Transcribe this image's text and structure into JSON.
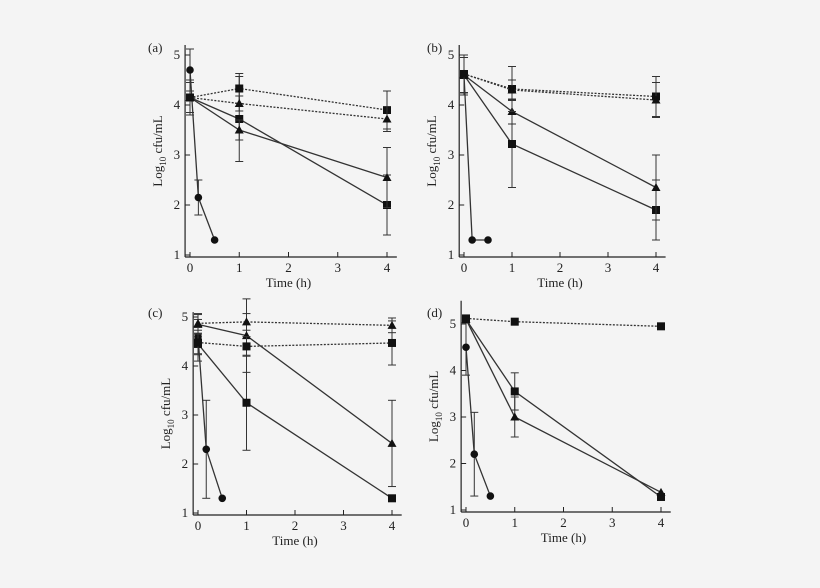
{
  "chart_data": [
    {
      "type": "line",
      "panel_label": "(a)",
      "xlabel": "Time (h)",
      "ylabel": {
        "base": "Log",
        "sub": "10",
        "rest": " cfu/mL"
      },
      "xlim": [
        -0.1,
        4.2
      ],
      "ylim": [
        1,
        5.2
      ],
      "xticks": [
        0,
        1,
        2,
        3,
        4
      ],
      "yticks": [
        1,
        2,
        3,
        4,
        5
      ],
      "grid": false,
      "series": [
        {
          "marker": "circle",
          "line": "solid",
          "x": [
            0,
            0.17,
            0.5
          ],
          "y": [
            4.7,
            2.15,
            1.3
          ],
          "err": [
            0.42,
            0.35,
            null
          ]
        },
        {
          "marker": "square",
          "line": "solid",
          "x": [
            0,
            1,
            4
          ],
          "y": [
            4.15,
            3.72,
            2.0
          ],
          "err": [
            0.35,
            0.85,
            0.6
          ]
        },
        {
          "marker": "triangle",
          "line": "solid",
          "x": [
            0,
            1,
            4
          ],
          "y": [
            4.15,
            3.5,
            2.55
          ],
          "err": [
            0.3,
            0.2,
            0.6
          ]
        },
        {
          "marker": "square",
          "line": "dotted",
          "x": [
            0,
            1,
            4
          ],
          "y": [
            4.15,
            4.33,
            3.9
          ],
          "err": [
            0.3,
            0.3,
            0.38
          ]
        },
        {
          "marker": "triangle",
          "line": "dotted",
          "x": [
            0,
            1,
            4
          ],
          "y": [
            4.15,
            4.03,
            3.72
          ],
          "err": [
            0.3,
            0.15,
            0.25
          ]
        }
      ]
    },
    {
      "type": "line",
      "panel_label": "(b)",
      "xlabel": "Time (h)",
      "ylabel": {
        "base": "Log",
        "sub": "10",
        "rest": " cfu/mL"
      },
      "xlim": [
        -0.1,
        4.2
      ],
      "ylim": [
        1,
        5.2
      ],
      "xticks": [
        0,
        1,
        2,
        3,
        4
      ],
      "yticks": [
        1,
        2,
        3,
        4,
        5
      ],
      "grid": false,
      "series": [
        {
          "marker": "circle",
          "line": "solid",
          "x": [
            0,
            0.17,
            0.5
          ],
          "y": [
            4.6,
            1.3,
            1.3
          ],
          "err": [
            0.4,
            null,
            null
          ]
        },
        {
          "marker": "square",
          "line": "solid",
          "x": [
            0,
            1,
            4
          ],
          "y": [
            4.6,
            3.22,
            1.9
          ],
          "err": [
            0.4,
            0.87,
            0.6
          ]
        },
        {
          "marker": "triangle",
          "line": "solid",
          "x": [
            0,
            1,
            4
          ],
          "y": [
            4.6,
            3.87,
            2.35
          ],
          "err": [
            0.35,
            0.25,
            0.65
          ]
        },
        {
          "marker": "square",
          "line": "dotted",
          "x": [
            0,
            1,
            4
          ],
          "y": [
            4.62,
            4.32,
            4.17
          ],
          "err": [
            0.38,
            0.45,
            0.4
          ]
        },
        {
          "marker": "triangle",
          "line": "dotted",
          "x": [
            0,
            1,
            4
          ],
          "y": [
            4.62,
            4.3,
            4.1
          ],
          "err": [
            0.38,
            0.2,
            0.35
          ]
        }
      ]
    },
    {
      "type": "line",
      "panel_label": "(c)",
      "xlabel": "Time (h)",
      "ylabel": {
        "base": "Log",
        "sub": "10",
        "rest": " cfu/mL"
      },
      "xlim": [
        -0.1,
        4.2
      ],
      "ylim": [
        1,
        5.1
      ],
      "xticks": [
        0,
        1,
        2,
        3,
        4
      ],
      "yticks": [
        1,
        2,
        3,
        4,
        5
      ],
      "grid": false,
      "series": [
        {
          "marker": "circle",
          "line": "solid",
          "x": [
            0,
            0.17,
            0.5
          ],
          "y": [
            4.6,
            2.3,
            1.3
          ],
          "err": [
            0.35,
            1.0,
            null
          ]
        },
        {
          "marker": "square",
          "line": "solid",
          "x": [
            0,
            1,
            4
          ],
          "y": [
            4.45,
            3.25,
            1.3
          ],
          "err": [
            0.35,
            0.97,
            null
          ]
        },
        {
          "marker": "triangle",
          "line": "solid",
          "x": [
            0,
            1,
            4
          ],
          "y": [
            4.85,
            4.62,
            2.42
          ],
          "err": [
            0.2,
            0.75,
            0.88
          ]
        },
        {
          "marker": "square",
          "line": "dotted",
          "x": [
            0,
            1,
            4
          ],
          "y": [
            4.48,
            4.4,
            4.47
          ],
          "err": [
            0.25,
            0.2,
            0.45
          ]
        },
        {
          "marker": "triangle",
          "line": "dotted",
          "x": [
            0,
            1,
            4
          ],
          "y": [
            4.87,
            4.9,
            4.83
          ],
          "err": [
            0.2,
            0.17,
            0.15
          ]
        }
      ]
    },
    {
      "type": "line",
      "panel_label": "(d)",
      "xlabel": "Time (h)",
      "ylabel": {
        "base": "Log",
        "sub": "10",
        "rest": " cfu/mL"
      },
      "xlim": [
        -0.1,
        4.2
      ],
      "ylim": [
        1,
        5.5
      ],
      "xticks": [
        0,
        1,
        2,
        3,
        4
      ],
      "yticks": [
        1,
        2,
        3,
        4,
        5
      ],
      "grid": false,
      "series": [
        {
          "marker": "circle",
          "line": "solid",
          "x": [
            0,
            0.17,
            0.5
          ],
          "y": [
            4.5,
            2.2,
            1.3
          ],
          "err": [
            0.6,
            0.9,
            null
          ]
        },
        {
          "marker": "square",
          "line": "solid",
          "x": [
            0,
            1,
            4
          ],
          "y": [
            5.1,
            3.55,
            1.28
          ],
          "err": [
            null,
            0.4,
            null
          ]
        },
        {
          "marker": "triangle",
          "line": "solid",
          "x": [
            0,
            1,
            4
          ],
          "y": [
            5.1,
            3.0,
            1.38
          ],
          "err": [
            null,
            0.43,
            null
          ]
        },
        {
          "marker": "square",
          "line": "dotted",
          "x": [
            0,
            1,
            4
          ],
          "y": [
            5.12,
            5.05,
            4.95
          ],
          "err": [
            null,
            null,
            null
          ]
        }
      ]
    }
  ]
}
